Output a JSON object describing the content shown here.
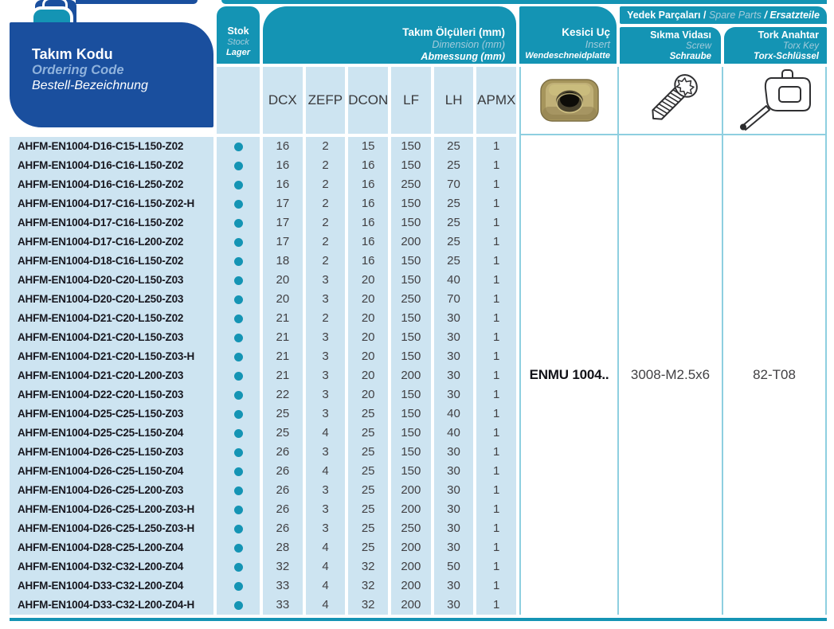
{
  "header": {
    "ordering_code": {
      "tr": "Takım Kodu",
      "en": "Ordering Code",
      "de": "Bestell-Bezeichnung"
    },
    "stock": {
      "tr": "Stok",
      "en": "Stock",
      "de": "Lager"
    },
    "dimensions": {
      "tr": "Takım Ölçüleri (mm)",
      "en": "Dimension (mm)",
      "de": "Abmessung (mm)"
    },
    "insert": {
      "tr": "Kesici Uç",
      "en": "Insert",
      "de": "Wendeschneidplatte"
    },
    "spare_parts": {
      "tr": "Yedek Parçaları /",
      "en": "Spare Parts",
      "de": "/ Ersatzteile"
    },
    "screw": {
      "tr": "Sıkma Vidası",
      "en": "Screw",
      "de": "Schraube"
    },
    "torx_key": {
      "tr": "Tork Anahtar",
      "en": "Torx Key",
      "de": "Torx-Schlüssel"
    }
  },
  "columns": [
    "DCX",
    "ZEFP",
    "DCON",
    "LF",
    "LH",
    "APMX"
  ],
  "spare_values": {
    "insert": "ENMU 1004..",
    "screw": "3008-M2.5x6",
    "torx_key": "82-T08"
  },
  "icons": {
    "tab": "catalog-tab-icon",
    "insert": "insert-photo",
    "screw": "torx-screw-drawing",
    "torx_key": "torx-key-drawing",
    "stock_dot": "stock-available-dot"
  },
  "colors": {
    "teal": "#1494b4",
    "dark_blue": "#1a4f9e",
    "cell_blue": "#cde4f1",
    "grid_line": "#8ecfe0",
    "stock_dot": "#1494b4"
  },
  "rows": [
    {
      "code": "AHFM-EN1004-D16-C15-L150-Z02",
      "stock": true,
      "values": [
        16,
        2,
        15,
        150,
        25,
        1
      ]
    },
    {
      "code": "AHFM-EN1004-D16-C16-L150-Z02",
      "stock": true,
      "values": [
        16,
        2,
        16,
        150,
        25,
        1
      ]
    },
    {
      "code": "AHFM-EN1004-D16-C16-L250-Z02",
      "stock": true,
      "values": [
        16,
        2,
        16,
        250,
        70,
        1
      ]
    },
    {
      "code": "AHFM-EN1004-D17-C16-L150-Z02-H",
      "stock": true,
      "values": [
        17,
        2,
        16,
        150,
        25,
        1
      ]
    },
    {
      "code": "AHFM-EN1004-D17-C16-L150-Z02",
      "stock": true,
      "values": [
        17,
        2,
        16,
        150,
        25,
        1
      ]
    },
    {
      "code": "AHFM-EN1004-D17-C16-L200-Z02",
      "stock": true,
      "values": [
        17,
        2,
        16,
        200,
        25,
        1
      ]
    },
    {
      "code": "AHFM-EN1004-D18-C16-L150-Z02",
      "stock": true,
      "values": [
        18,
        2,
        16,
        150,
        25,
        1
      ]
    },
    {
      "code": "AHFM-EN1004-D20-C20-L150-Z03",
      "stock": true,
      "values": [
        20,
        3,
        20,
        150,
        40,
        1
      ]
    },
    {
      "code": "AHFM-EN1004-D20-C20-L250-Z03",
      "stock": true,
      "values": [
        20,
        3,
        20,
        250,
        70,
        1
      ]
    },
    {
      "code": "AHFM-EN1004-D21-C20-L150-Z02",
      "stock": true,
      "values": [
        21,
        2,
        20,
        150,
        30,
        1
      ]
    },
    {
      "code": "AHFM-EN1004-D21-C20-L150-Z03",
      "stock": true,
      "values": [
        21,
        3,
        20,
        150,
        30,
        1
      ]
    },
    {
      "code": "AHFM-EN1004-D21-C20-L150-Z03-H",
      "stock": true,
      "values": [
        21,
        3,
        20,
        150,
        30,
        1
      ]
    },
    {
      "code": "AHFM-EN1004-D21-C20-L200-Z03",
      "stock": true,
      "values": [
        21,
        3,
        20,
        200,
        30,
        1
      ]
    },
    {
      "code": "AHFM-EN1004-D22-C20-L150-Z03",
      "stock": true,
      "values": [
        22,
        3,
        20,
        150,
        30,
        1
      ]
    },
    {
      "code": "AHFM-EN1004-D25-C25-L150-Z03",
      "stock": true,
      "values": [
        25,
        3,
        25,
        150,
        40,
        1
      ]
    },
    {
      "code": "AHFM-EN1004-D25-C25-L150-Z04",
      "stock": true,
      "values": [
        25,
        4,
        25,
        150,
        40,
        1
      ]
    },
    {
      "code": "AHFM-EN1004-D26-C25-L150-Z03",
      "stock": true,
      "values": [
        26,
        3,
        25,
        150,
        30,
        1
      ]
    },
    {
      "code": "AHFM-EN1004-D26-C25-L150-Z04",
      "stock": true,
      "values": [
        26,
        4,
        25,
        150,
        30,
        1
      ]
    },
    {
      "code": "AHFM-EN1004-D26-C25-L200-Z03",
      "stock": true,
      "values": [
        26,
        3,
        25,
        200,
        30,
        1
      ]
    },
    {
      "code": "AHFM-EN1004-D26-C25-L200-Z03-H",
      "stock": true,
      "values": [
        26,
        3,
        25,
        200,
        30,
        1
      ]
    },
    {
      "code": "AHFM-EN1004-D26-C25-L250-Z03-H",
      "stock": true,
      "values": [
        26,
        3,
        25,
        250,
        30,
        1
      ]
    },
    {
      "code": "AHFM-EN1004-D28-C25-L200-Z04",
      "stock": true,
      "values": [
        28,
        4,
        25,
        200,
        30,
        1
      ]
    },
    {
      "code": "AHFM-EN1004-D32-C32-L200-Z04",
      "stock": true,
      "values": [
        32,
        4,
        32,
        200,
        50,
        1
      ]
    },
    {
      "code": "AHFM-EN1004-D33-C32-L200-Z04",
      "stock": true,
      "values": [
        33,
        4,
        32,
        200,
        30,
        1
      ]
    },
    {
      "code": "AHFM-EN1004-D33-C32-L200-Z04-H",
      "stock": true,
      "values": [
        33,
        4,
        32,
        200,
        30,
        1
      ]
    }
  ]
}
